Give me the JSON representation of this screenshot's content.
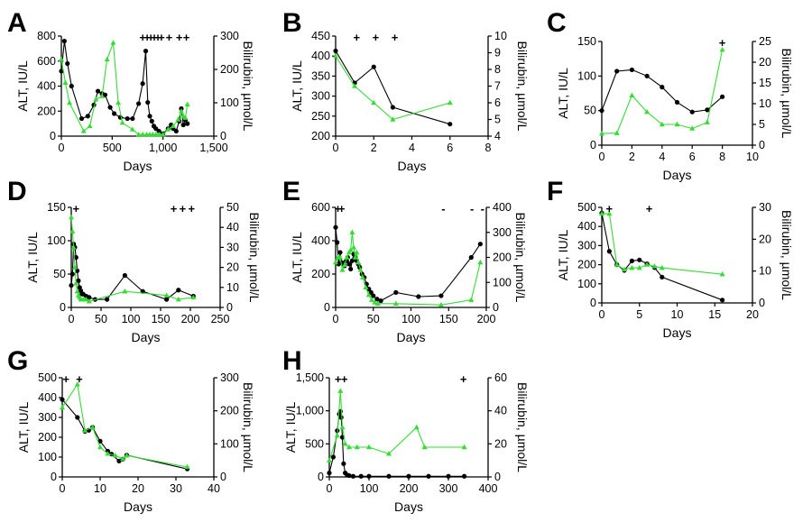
{
  "colors": {
    "alt": "#000000",
    "bilirubin": "#33dd33"
  },
  "chart_data": [
    {
      "type": "line",
      "panel_label": "A",
      "xlabel": "Days",
      "ylabel": "ALT, IU/L",
      "y2label": "Bilirubin, µmol/L",
      "xlim": [
        0,
        1500
      ],
      "ylim": [
        0,
        800
      ],
      "y2lim": [
        0,
        300
      ],
      "xticks": [
        0,
        500,
        1000,
        1500
      ],
      "xtick_labels": [
        "0",
        "500",
        "1,000",
        "1,500"
      ],
      "yticks": [
        0,
        200,
        400,
        600,
        800
      ],
      "ytick_labels": [
        "0",
        "200",
        "400",
        "600",
        "800"
      ],
      "y2ticks": [
        0,
        100,
        200,
        300
      ],
      "y2tick_labels": [
        "0",
        "100",
        "200",
        "300"
      ],
      "series": [
        {
          "axis": "left",
          "marker": "circle",
          "x": [
            0,
            30,
            60,
            100,
            200,
            260,
            320,
            360,
            400,
            430,
            480,
            520,
            580,
            650,
            700,
            760,
            800,
            830,
            850,
            870,
            890,
            910,
            930,
            960,
            1000,
            1050,
            1080,
            1100,
            1130,
            1160,
            1180,
            1200,
            1220,
            1240
          ],
          "y": [
            520,
            760,
            580,
            400,
            140,
            160,
            250,
            360,
            340,
            330,
            230,
            180,
            150,
            140,
            140,
            260,
            420,
            680,
            270,
            160,
            120,
            80,
            60,
            40,
            20,
            60,
            90,
            60,
            40,
            120,
            220,
            90,
            130,
            100
          ]
        },
        {
          "axis": "right",
          "marker": "triangle",
          "x": [
            0,
            40,
            80,
            220,
            280,
            340,
            400,
            450,
            510,
            560,
            600,
            700,
            760,
            800,
            840,
            870,
            900,
            930,
            960,
            1000,
            1050,
            1100,
            1150,
            1180,
            1200,
            1220,
            1240
          ],
          "y": [
            230,
            160,
            100,
            15,
            30,
            110,
            120,
            230,
            280,
            100,
            40,
            20,
            5,
            5,
            5,
            5,
            5,
            5,
            5,
            5,
            20,
            30,
            50,
            75,
            60,
            55,
            95
          ]
        }
      ],
      "markers": [
        {
          "text": "+",
          "x": 800
        },
        {
          "text": "+",
          "x": 845
        },
        {
          "text": "+",
          "x": 880
        },
        {
          "text": "+",
          "x": 915
        },
        {
          "text": "+",
          "x": 950
        },
        {
          "text": "+",
          "x": 985
        },
        {
          "text": "+",
          "x": 1060
        },
        {
          "text": "+",
          "x": 1160
        },
        {
          "text": "+",
          "x": 1230
        }
      ]
    },
    {
      "type": "line",
      "panel_label": "B",
      "xlabel": "Days",
      "ylabel": "ALT, IU/L",
      "y2label": "Bilirubin, µmol/L",
      "xlim": [
        0,
        8
      ],
      "ylim": [
        200,
        450
      ],
      "y2lim": [
        4,
        10
      ],
      "xticks": [
        0,
        2,
        4,
        6,
        8
      ],
      "xtick_labels": [
        "0",
        "2",
        "4",
        "6",
        "8"
      ],
      "yticks": [
        200,
        250,
        300,
        350,
        400,
        450
      ],
      "ytick_labels": [
        "200",
        "250",
        "300",
        "350",
        "400",
        "450"
      ],
      "y2ticks": [
        4,
        5,
        6,
        7,
        8,
        9,
        10
      ],
      "y2tick_labels": [
        "4",
        "5",
        "6",
        "7",
        "8",
        "9",
        "10"
      ],
      "series": [
        {
          "axis": "left",
          "marker": "circle",
          "x": [
            0,
            1,
            2,
            3,
            6
          ],
          "y": [
            413,
            333,
            373,
            272,
            230
          ]
        },
        {
          "axis": "right",
          "marker": "triangle",
          "x": [
            0,
            1,
            2,
            3,
            6
          ],
          "y": [
            8.8,
            7,
            6,
            5,
            6
          ]
        }
      ],
      "markers": [
        {
          "text": "+",
          "x": 1.1
        },
        {
          "text": "+",
          "x": 2.1
        },
        {
          "text": "+",
          "x": 3.1
        }
      ]
    },
    {
      "type": "line",
      "panel_label": "C",
      "xlabel": "Days",
      "ylabel": "ALT, IU/L",
      "y2label": "Bilirubin, µmol/L",
      "xlim": [
        0,
        10
      ],
      "ylim": [
        0,
        150
      ],
      "y2lim": [
        0,
        25
      ],
      "xticks": [
        0,
        2,
        4,
        6,
        8,
        10
      ],
      "xtick_labels": [
        "0",
        "2",
        "4",
        "6",
        "8",
        "10"
      ],
      "yticks": [
        0,
        50,
        100,
        150
      ],
      "ytick_labels": [
        "0",
        "50",
        "100",
        "150"
      ],
      "y2ticks": [
        0,
        5,
        10,
        15,
        20,
        25
      ],
      "y2tick_labels": [
        "0",
        "5",
        "10",
        "15",
        "20",
        "25"
      ],
      "series": [
        {
          "axis": "left",
          "marker": "circle",
          "x": [
            0,
            1,
            2,
            3,
            4,
            5,
            6,
            7,
            8
          ],
          "y": [
            50,
            107,
            109,
            100,
            84,
            62,
            48,
            51,
            70
          ]
        },
        {
          "axis": "right",
          "marker": "triangle",
          "x": [
            0,
            1,
            2,
            3,
            4,
            5,
            6,
            7,
            8
          ],
          "y": [
            2.8,
            2.9,
            12,
            8,
            5,
            5,
            4,
            5.5,
            23
          ]
        }
      ],
      "markers": [
        {
          "text": "+",
          "x": 8
        }
      ]
    },
    {
      "type": "line",
      "panel_label": "D",
      "xlabel": "Days",
      "ylabel": "ALT, IU/L",
      "y2label": "Bilirubin, µmol/L",
      "xlim": [
        0,
        250
      ],
      "ylim": [
        0,
        150
      ],
      "y2lim": [
        0,
        50
      ],
      "xticks": [
        0,
        50,
        100,
        150,
        200,
        250
      ],
      "xtick_labels": [
        "0",
        "50",
        "100",
        "150",
        "200",
        "250"
      ],
      "yticks": [
        0,
        50,
        100,
        150
      ],
      "ytick_labels": [
        "0",
        "50",
        "100",
        "150"
      ],
      "y2ticks": [
        0,
        10,
        20,
        30,
        40,
        50
      ],
      "y2tick_labels": [
        "0",
        "10",
        "20",
        "30",
        "40",
        "50"
      ],
      "series": [
        {
          "axis": "left",
          "marker": "circle",
          "x": [
            0,
            2,
            4,
            6,
            8,
            10,
            12,
            14,
            16,
            18,
            20,
            25,
            30,
            40,
            60,
            90,
            120,
            160,
            180,
            205
          ],
          "y": [
            33,
            50,
            95,
            90,
            75,
            55,
            40,
            30,
            25,
            20,
            20,
            17,
            15,
            12,
            12,
            48,
            24,
            12,
            26,
            17
          ]
        },
        {
          "axis": "right",
          "marker": "triangle",
          "x": [
            0,
            2,
            4,
            6,
            8,
            10,
            12,
            14,
            16,
            20,
            25,
            30,
            90,
            160,
            180,
            205
          ],
          "y": [
            45,
            38,
            30,
            20,
            12,
            8,
            6,
            5,
            4,
            4,
            4,
            3,
            8,
            6,
            4,
            5
          ]
        }
      ],
      "markers": [
        {
          "text": "+",
          "x": 8
        },
        {
          "text": "+",
          "x": 172
        },
        {
          "text": "+",
          "x": 187
        },
        {
          "text": "+",
          "x": 202
        }
      ]
    },
    {
      "type": "line",
      "panel_label": "E",
      "xlabel": "Days",
      "ylabel": "ALT, IU/L",
      "y2label": "Bilirubin, µmol/L",
      "xlim": [
        0,
        200
      ],
      "ylim": [
        0,
        600
      ],
      "y2lim": [
        0,
        400
      ],
      "xticks": [
        0,
        50,
        100,
        150,
        200
      ],
      "xtick_labels": [
        "0",
        "50",
        "100",
        "150",
        "200"
      ],
      "yticks": [
        0,
        200,
        400,
        600
      ],
      "ytick_labels": [
        "0",
        "200",
        "400",
        "600"
      ],
      "y2ticks": [
        0,
        100,
        200,
        300,
        400
      ],
      "y2tick_labels": [
        "0",
        "100",
        "200",
        "300",
        "400"
      ],
      "series": [
        {
          "axis": "left",
          "marker": "circle",
          "x": [
            0,
            2,
            4,
            6,
            8,
            10,
            12,
            14,
            16,
            18,
            20,
            22,
            24,
            26,
            28,
            30,
            32,
            35,
            38,
            41,
            44,
            47,
            50,
            55,
            60,
            80,
            110,
            140,
            180,
            192
          ],
          "y": [
            480,
            390,
            260,
            330,
            270,
            260,
            250,
            280,
            300,
            260,
            230,
            280,
            320,
            300,
            280,
            260,
            240,
            200,
            180,
            140,
            110,
            90,
            70,
            50,
            40,
            90,
            65,
            70,
            300,
            380
          ]
        },
        {
          "axis": "right",
          "marker": "triangle",
          "x": [
            0,
            3,
            6,
            9,
            12,
            15,
            18,
            20,
            22,
            24,
            26,
            28,
            30,
            33,
            36,
            40,
            44,
            48,
            52,
            56,
            80,
            140,
            180,
            192
          ],
          "y": [
            180,
            200,
            200,
            150,
            170,
            200,
            220,
            230,
            300,
            240,
            200,
            220,
            180,
            150,
            120,
            80,
            50,
            30,
            20,
            15,
            15,
            10,
            30,
            180
          ]
        }
      ],
      "markers": [
        {
          "text": "+",
          "x": 3
        },
        {
          "text": "+",
          "x": 8
        },
        {
          "text": "-",
          "x": 143
        },
        {
          "text": "-",
          "x": 181
        },
        {
          "text": "-",
          "x": 195
        }
      ]
    },
    {
      "type": "line",
      "panel_label": "F",
      "xlabel": "Days",
      "ylabel": "ALT, IU/L",
      "y2label": "Bilirubin, µmol/L",
      "xlim": [
        0,
        20
      ],
      "ylim": [
        0,
        500
      ],
      "y2lim": [
        0,
        30
      ],
      "xticks": [
        0,
        5,
        10,
        15,
        20
      ],
      "xtick_labels": [
        "0",
        "5",
        "10",
        "15",
        "20"
      ],
      "yticks": [
        0,
        100,
        200,
        300,
        400,
        500
      ],
      "ytick_labels": [
        "0",
        "100",
        "200",
        "300",
        "400",
        "500"
      ],
      "y2ticks": [
        0,
        10,
        20,
        30
      ],
      "y2tick_labels": [
        "0",
        "10",
        "20",
        "30"
      ],
      "series": [
        {
          "axis": "left",
          "marker": "circle",
          "x": [
            0,
            1,
            2,
            3,
            4,
            5,
            6,
            7,
            8,
            16
          ],
          "y": [
            470,
            270,
            200,
            170,
            220,
            225,
            205,
            185,
            135,
            15
          ]
        },
        {
          "axis": "right",
          "marker": "triangle",
          "x": [
            0,
            1,
            2,
            3,
            4,
            5,
            6,
            7,
            8,
            16
          ],
          "y": [
            28,
            28,
            12,
            10.5,
            11,
            11,
            12,
            11.5,
            11,
            9
          ]
        }
      ],
      "markers": [
        {
          "text": "+",
          "x": 1
        },
        {
          "text": "+",
          "x": 6.3
        }
      ]
    },
    {
      "type": "line",
      "panel_label": "G",
      "xlabel": "Days",
      "ylabel": "ALT, IU/L",
      "y2label": "Bilirubin, µmol/L",
      "xlim": [
        0,
        40
      ],
      "ylim": [
        0,
        500
      ],
      "y2lim": [
        0,
        300
      ],
      "xticks": [
        0,
        10,
        20,
        30,
        40
      ],
      "xtick_labels": [
        "0",
        "10",
        "20",
        "30",
        "40"
      ],
      "yticks": [
        0,
        100,
        200,
        300,
        400,
        500
      ],
      "ytick_labels": [
        "0",
        "100",
        "200",
        "300",
        "400",
        "500"
      ],
      "y2ticks": [
        0,
        100,
        200,
        300
      ],
      "y2tick_labels": [
        "0",
        "100",
        "200",
        "300"
      ],
      "series": [
        {
          "axis": "left",
          "marker": "circle",
          "x": [
            0,
            4,
            6,
            7,
            8,
            10,
            12,
            13,
            15,
            16,
            17,
            33
          ],
          "y": [
            390,
            300,
            230,
            235,
            250,
            180,
            130,
            115,
            80,
            90,
            110,
            40
          ]
        },
        {
          "axis": "right",
          "marker": "triangle",
          "x": [
            0,
            4,
            6,
            8,
            10,
            12,
            14,
            16,
            17,
            33
          ],
          "y": [
            210,
            280,
            140,
            150,
            90,
            70,
            65,
            55,
            65,
            30
          ]
        }
      ],
      "markers": [
        {
          "text": "+",
          "x": 1
        },
        {
          "text": "+",
          "x": 4.5
        }
      ]
    },
    {
      "type": "line",
      "panel_label": "H",
      "xlabel": "Days",
      "ylabel": "ALT, IU/L",
      "y2label": "Bilirubin, µmol/L",
      "xlim": [
        0,
        400
      ],
      "ylim": [
        0,
        1500
      ],
      "y2lim": [
        0,
        60
      ],
      "xticks": [
        0,
        100,
        200,
        300,
        400
      ],
      "xtick_labels": [
        "0",
        "100",
        "200",
        "300",
        "400"
      ],
      "yticks": [
        0,
        500,
        1000,
        1500
      ],
      "ytick_labels": [
        "0",
        "500",
        "1,000",
        "1,500"
      ],
      "y2ticks": [
        0,
        20,
        40,
        60
      ],
      "y2tick_labels": [
        "0",
        "20",
        "40",
        "60"
      ],
      "series": [
        {
          "axis": "left",
          "marker": "circle",
          "x": [
            0,
            10,
            20,
            25,
            28,
            30,
            33,
            36,
            40,
            45,
            50,
            60,
            80,
            100,
            150,
            200,
            250,
            300,
            340
          ],
          "y": [
            60,
            300,
            700,
            950,
            990,
            900,
            600,
            200,
            60,
            30,
            20,
            10,
            10,
            10,
            10,
            10,
            10,
            10,
            10
          ]
        },
        {
          "axis": "right",
          "marker": "triangle",
          "x": [
            0,
            20,
            28,
            33,
            40,
            50,
            70,
            100,
            150,
            220,
            240,
            340
          ],
          "y": [
            10,
            25,
            52,
            30,
            20,
            18,
            18,
            18,
            14,
            30,
            18,
            18
          ]
        }
      ],
      "markers": [
        {
          "text": "+",
          "x": 22
        },
        {
          "text": "+",
          "x": 38
        },
        {
          "text": "+",
          "x": 338
        }
      ]
    }
  ]
}
